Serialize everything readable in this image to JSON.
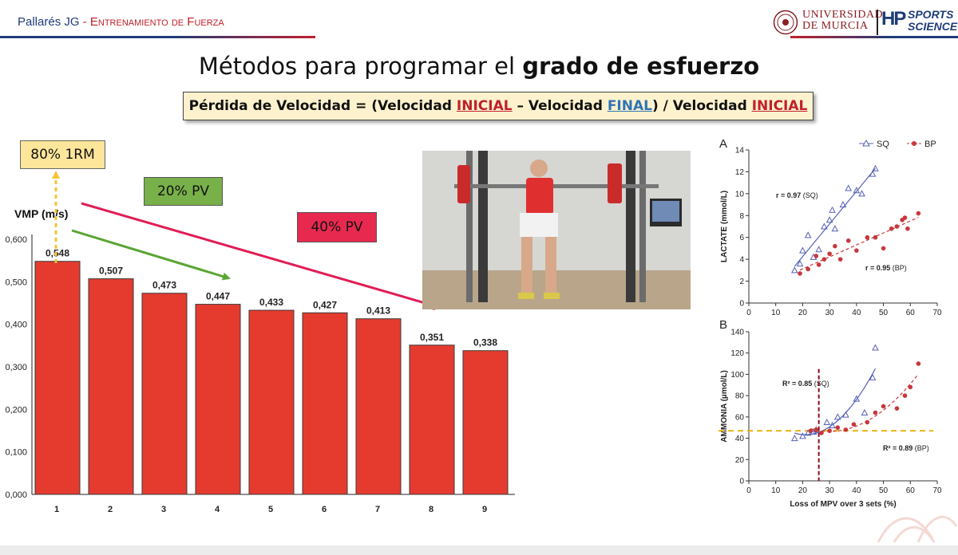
{
  "header": {
    "author": "Pallarés JG",
    "separator": "-",
    "course": "Entrenamiento de Fuerza",
    "uni_line1": "UNIVERSIDAD",
    "uni_line2": "DE MURCIA",
    "hp_mark": "HP",
    "sports_line1": "SPORTS",
    "sports_line2": "SCIENCE"
  },
  "title": {
    "normal": "Métodos para programar el ",
    "bold": "grado de esfuerzo"
  },
  "formula": {
    "p1": "Pérdida de Velocidad = (Velocidad ",
    "w1": "INICIAL",
    "p2": " – Velocidad ",
    "w2": "FINAL",
    "p3": ") / Velocidad ",
    "w3": "INICIAL"
  },
  "callouts": {
    "one_rm": "80% 1RM",
    "pv20": "20% PV",
    "pv40": "40% PV"
  },
  "colors": {
    "bar": "#e53b2f",
    "callout_1rm": "#fde59a",
    "callout_20": "#78b04a",
    "callout_40": "#e8294f",
    "arrow_1rm": "#f5c431",
    "arrow_20": "#5aa534",
    "arrow_40": "#e11d55",
    "sq": "#5561b5",
    "bp": "#c8373b",
    "threshold": "#e9b30d"
  },
  "chart_data": [
    {
      "type": "bar",
      "ylabel": "VMP (m/s)",
      "categories": [
        "1",
        "2",
        "3",
        "4",
        "5",
        "6",
        "7",
        "8",
        "9"
      ],
      "values": [
        0.548,
        0.507,
        0.473,
        0.447,
        0.433,
        0.427,
        0.413,
        0.351,
        0.338
      ],
      "data_labels": [
        "0,548",
        "0,507",
        "0,473",
        "0,447",
        "0,433",
        "0,427",
        "0,413",
        "0,351",
        "0,338"
      ],
      "ylim": [
        0,
        0.6
      ],
      "yticks": [
        0,
        0.1,
        0.2,
        0.3,
        0.4,
        0.5,
        0.6
      ],
      "ytick_labels": [
        "0,000",
        "0,100",
        "0,200",
        "0,300",
        "0,400",
        "0,500",
        "0,600"
      ],
      "grid": false
    },
    {
      "type": "scatter",
      "panel": "A",
      "ylabel": "LACTATE (mmol/L)",
      "xlim": [
        0,
        70
      ],
      "ylim": [
        0,
        14
      ],
      "xticks": [
        0,
        10,
        20,
        30,
        40,
        50,
        60,
        70
      ],
      "yticks": [
        0,
        2,
        4,
        6,
        8,
        10,
        12,
        14
      ],
      "legend": "top-right",
      "series": [
        {
          "name": "SQ",
          "marker": "triangle",
          "x": [
            17,
            19,
            20,
            22,
            24,
            26,
            28,
            30,
            31,
            32,
            35,
            37,
            40,
            42,
            46,
            47
          ],
          "y": [
            3.0,
            3.6,
            4.8,
            6.2,
            4.2,
            4.9,
            7.0,
            7.6,
            8.5,
            6.8,
            9.0,
            10.5,
            10.3,
            10.0,
            11.8,
            12.3
          ]
        },
        {
          "name": "BP",
          "marker": "circle",
          "x": [
            19,
            22,
            25,
            26,
            28,
            30,
            32,
            34,
            37,
            40,
            44,
            47,
            50,
            53,
            55,
            57,
            58,
            59,
            63
          ],
          "y": [
            2.7,
            3.1,
            4.3,
            3.5,
            4.0,
            4.5,
            5.2,
            4.0,
            5.7,
            4.8,
            6.0,
            6.0,
            5.0,
            6.8,
            7.0,
            7.6,
            7.8,
            6.8,
            8.2
          ]
        }
      ],
      "annotations": [
        {
          "label": "r = 0.97",
          "series": "(SQ)"
        },
        {
          "label": "r = 0.95",
          "series": "(BP)"
        }
      ]
    },
    {
      "type": "scatter",
      "panel": "B",
      "ylabel": "AMMONIA (µmol/L)",
      "xlabel": "Loss of MPV over 3 sets  (%)",
      "xlim": [
        0,
        70
      ],
      "ylim": [
        0,
        140
      ],
      "xticks": [
        0,
        10,
        20,
        30,
        40,
        50,
        60,
        70
      ],
      "yticks": [
        0,
        20,
        40,
        60,
        80,
        100,
        120,
        140
      ],
      "reference_lines": {
        "horizontal_y": 47,
        "vertical_x": 26
      },
      "series": [
        {
          "name": "SQ",
          "marker": "triangle",
          "x": [
            17,
            20,
            22,
            24,
            25,
            29,
            31,
            33,
            36,
            40,
            43,
            46,
            47
          ],
          "y": [
            40,
            42,
            45,
            46,
            48,
            55,
            52,
            60,
            62,
            77,
            64,
            97,
            125
          ]
        },
        {
          "name": "BP",
          "marker": "circle",
          "x": [
            23,
            25,
            27,
            30,
            33,
            36,
            39,
            44,
            47,
            50,
            55,
            58,
            60,
            63
          ],
          "y": [
            47,
            48,
            45,
            47,
            50,
            48,
            53,
            55,
            64,
            70,
            68,
            80,
            88,
            110
          ]
        }
      ],
      "annotations": [
        {
          "label": "R² = 0.85",
          "series": "(SQ)"
        },
        {
          "label": "R² = 0.89",
          "series": "(BP)"
        }
      ]
    }
  ]
}
